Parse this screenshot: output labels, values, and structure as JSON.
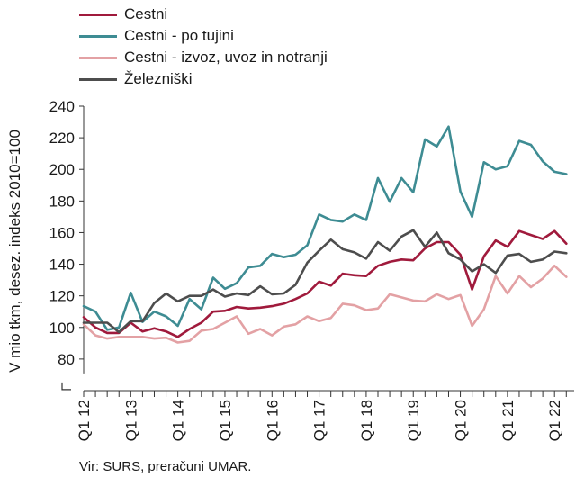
{
  "chart_data": {
    "type": "line",
    "ylabel": "V mio tkm, desez. indeks 2010=100",
    "ylim": [
      60,
      240
    ],
    "yticks": [
      80,
      100,
      120,
      140,
      160,
      180,
      200,
      220,
      240
    ],
    "x_period_labels": [
      "Q1 12",
      "Q1 13",
      "Q1 14",
      "Q1 15",
      "Q1 16",
      "Q1 17",
      "Q1 18",
      "Q1 19",
      "Q1 20",
      "Q1 21",
      "Q1 22"
    ],
    "x_months": [
      "2012-01",
      "2012-02",
      "2012-03",
      "2012-04",
      "2012-05",
      "2012-06",
      "2012-07",
      "2012-08",
      "2012-09",
      "2012-10",
      "2012-11",
      "2012-12",
      "2013-01",
      "2013-02",
      "2013-03",
      "2013-04",
      "2013-05",
      "2013-06",
      "2013-07",
      "2013-08",
      "2013-09",
      "2013-10",
      "2013-11",
      "2013-12",
      "2014-01",
      "2014-02",
      "2014-03",
      "2014-04",
      "2014-05",
      "2014-06",
      "2014-07",
      "2014-08",
      "2014-09",
      "2014-10",
      "2014-11",
      "2014-12",
      "2015-01",
      "2015-02",
      "2015-03",
      "2015-04",
      "2015-05",
      "2015-06",
      "2015-07",
      "2015-08",
      "2015-09",
      "2015-10",
      "2015-11",
      "2015-12",
      "2016-01",
      "2016-02",
      "2016-03",
      "2016-04",
      "2016-05",
      "2016-06",
      "2016-07",
      "2016-08",
      "2016-09",
      "2016-10",
      "2016-11",
      "2016-12",
      "2017-01",
      "2017-02",
      "2017-03",
      "2017-04",
      "2017-05",
      "2017-06",
      "2017-07",
      "2017-08",
      "2017-09",
      "2017-10",
      "2017-11",
      "2017-12",
      "2018-01",
      "2018-02",
      "2018-03",
      "2018-04",
      "2018-05",
      "2018-06",
      "2018-07",
      "2018-08",
      "2018-09",
      "2018-10",
      "2018-11",
      "2018-12",
      "2019-01",
      "2019-02",
      "2019-03",
      "2019-04",
      "2019-05",
      "2019-06",
      "2019-07",
      "2019-08",
      "2019-09",
      "2019-10",
      "2019-11",
      "2019-12",
      "2020-01",
      "2020-02",
      "2020-03",
      "2020-04",
      "2020-05",
      "2020-06",
      "2020-07",
      "2020-08",
      "2020-09",
      "2020-10",
      "2020-11",
      "2020-12",
      "2021-01",
      "2021-02",
      "2021-03",
      "2021-04",
      "2021-05",
      "2021-06",
      "2021-07",
      "2021-08",
      "2021-09",
      "2021-10",
      "2021-11",
      "2021-12",
      "2022-01",
      "2022-02",
      "2022-03",
      "2022-04",
      "2022-05",
      "2022-06"
    ],
    "series": [
      {
        "name": "Cestni",
        "color": "#A01A3C",
        "points": [
          [
            "2012-01",
            106.5
          ],
          [
            "2012-04",
            100
          ],
          [
            "2012-07",
            96.5
          ],
          [
            "2012-10",
            96.5
          ],
          [
            "2013-01",
            103
          ],
          [
            "2013-04",
            97.5
          ],
          [
            "2013-07",
            99.5
          ],
          [
            "2013-10",
            97.5
          ],
          [
            "2014-01",
            94
          ],
          [
            "2014-04",
            99
          ],
          [
            "2014-07",
            103
          ],
          [
            "2014-10",
            110
          ],
          [
            "2015-01",
            110.5
          ],
          [
            "2015-04",
            113
          ],
          [
            "2015-07",
            112
          ],
          [
            "2015-10",
            112.5
          ],
          [
            "2016-01",
            113.5
          ],
          [
            "2016-04",
            115
          ],
          [
            "2016-07",
            118
          ],
          [
            "2016-10",
            121.5
          ],
          [
            "2017-01",
            129
          ],
          [
            "2017-04",
            126.5
          ],
          [
            "2017-07",
            134
          ],
          [
            "2017-10",
            133
          ],
          [
            "2018-01",
            132.5
          ],
          [
            "2018-04",
            139
          ],
          [
            "2018-07",
            141.5
          ],
          [
            "2018-10",
            143
          ],
          [
            "2019-01",
            142.5
          ],
          [
            "2019-04",
            150
          ],
          [
            "2019-07",
            154
          ],
          [
            "2019-10",
            154
          ],
          [
            "2020-01",
            146
          ],
          [
            "2020-04",
            124
          ],
          [
            "2020-07",
            145
          ],
          [
            "2020-10",
            155
          ],
          [
            "2021-01",
            151
          ],
          [
            "2021-04",
            161
          ],
          [
            "2021-07",
            158.5
          ],
          [
            "2021-10",
            156
          ],
          [
            "2022-01",
            161
          ],
          [
            "2022-04",
            153
          ]
        ]
      },
      {
        "name": "Cestni - po tujini",
        "color": "#3E8C93",
        "points": [
          [
            "2012-01",
            113.5
          ],
          [
            "2012-04",
            110
          ],
          [
            "2012-07",
            98.5
          ],
          [
            "2012-10",
            100
          ],
          [
            "2013-01",
            122
          ],
          [
            "2013-04",
            103.5
          ],
          [
            "2013-07",
            110
          ],
          [
            "2013-10",
            107
          ],
          [
            "2014-01",
            101
          ],
          [
            "2014-04",
            118
          ],
          [
            "2014-07",
            111.5
          ],
          [
            "2014-10",
            131.5
          ],
          [
            "2015-01",
            124.5
          ],
          [
            "2015-04",
            128
          ],
          [
            "2015-07",
            138
          ],
          [
            "2015-10",
            139
          ],
          [
            "2016-01",
            146.5
          ],
          [
            "2016-04",
            144.5
          ],
          [
            "2016-07",
            146
          ],
          [
            "2016-10",
            152
          ],
          [
            "2017-01",
            171.5
          ],
          [
            "2017-04",
            168
          ],
          [
            "2017-07",
            167
          ],
          [
            "2017-10",
            171.5
          ],
          [
            "2018-01",
            168
          ],
          [
            "2018-04",
            194.5
          ],
          [
            "2018-07",
            179.5
          ],
          [
            "2018-10",
            194.5
          ],
          [
            "2019-01",
            185.5
          ],
          [
            "2019-04",
            219
          ],
          [
            "2019-07",
            214.5
          ],
          [
            "2019-10",
            227
          ],
          [
            "2020-01",
            186
          ],
          [
            "2020-04",
            170
          ],
          [
            "2020-07",
            204.5
          ],
          [
            "2020-10",
            200
          ],
          [
            "2021-01",
            202
          ],
          [
            "2021-04",
            218
          ],
          [
            "2021-07",
            215.5
          ],
          [
            "2021-10",
            205
          ],
          [
            "2022-01",
            198.5
          ],
          [
            "2022-04",
            197
          ]
        ]
      },
      {
        "name": "Cestni - izvoz, uvoz in notranji",
        "color": "#E3A1A4",
        "points": [
          [
            "2012-01",
            102
          ],
          [
            "2012-04",
            95
          ],
          [
            "2012-07",
            93
          ],
          [
            "2012-10",
            94
          ],
          [
            "2013-01",
            94
          ],
          [
            "2013-04",
            94
          ],
          [
            "2013-07",
            93
          ],
          [
            "2013-10",
            93.5
          ],
          [
            "2014-01",
            90.5
          ],
          [
            "2014-04",
            91.5
          ],
          [
            "2014-07",
            98
          ],
          [
            "2014-10",
            99
          ],
          [
            "2015-01",
            103
          ],
          [
            "2015-04",
            107
          ],
          [
            "2015-07",
            96
          ],
          [
            "2015-10",
            99
          ],
          [
            "2016-01",
            95
          ],
          [
            "2016-04",
            100.5
          ],
          [
            "2016-07",
            102
          ],
          [
            "2016-10",
            107
          ],
          [
            "2017-01",
            104
          ],
          [
            "2017-04",
            106
          ],
          [
            "2017-07",
            115
          ],
          [
            "2017-10",
            114
          ],
          [
            "2018-01",
            111
          ],
          [
            "2018-04",
            112
          ],
          [
            "2018-07",
            121
          ],
          [
            "2018-10",
            119
          ],
          [
            "2019-01",
            117
          ],
          [
            "2019-04",
            116.5
          ],
          [
            "2019-07",
            121
          ],
          [
            "2019-10",
            118
          ],
          [
            "2020-01",
            120.5
          ],
          [
            "2020-04",
            101
          ],
          [
            "2020-07",
            111.5
          ],
          [
            "2020-10",
            132.5
          ],
          [
            "2021-01",
            121.5
          ],
          [
            "2021-04",
            132.5
          ],
          [
            "2021-07",
            125.5
          ],
          [
            "2021-10",
            131
          ],
          [
            "2022-01",
            139
          ],
          [
            "2022-04",
            132
          ]
        ]
      },
      {
        "name": "Železniški",
        "color": "#4D4D4D",
        "points": [
          [
            "2012-01",
            103
          ],
          [
            "2012-04",
            103
          ],
          [
            "2012-07",
            103
          ],
          [
            "2012-10",
            97
          ],
          [
            "2013-01",
            104
          ],
          [
            "2013-04",
            104
          ],
          [
            "2013-07",
            115.5
          ],
          [
            "2013-10",
            121.5
          ],
          [
            "2014-01",
            116.5
          ],
          [
            "2014-04",
            120
          ],
          [
            "2014-07",
            120
          ],
          [
            "2014-10",
            124
          ],
          [
            "2015-01",
            119.5
          ],
          [
            "2015-04",
            121.5
          ],
          [
            "2015-07",
            120.5
          ],
          [
            "2015-10",
            126
          ],
          [
            "2016-01",
            121
          ],
          [
            "2016-04",
            121.5
          ],
          [
            "2016-07",
            127
          ],
          [
            "2016-10",
            141
          ],
          [
            "2017-01",
            148.5
          ],
          [
            "2017-04",
            155.5
          ],
          [
            "2017-07",
            149.5
          ],
          [
            "2017-10",
            147.5
          ],
          [
            "2018-01",
            143.5
          ],
          [
            "2018-04",
            154
          ],
          [
            "2018-07",
            148.5
          ],
          [
            "2018-10",
            157.5
          ],
          [
            "2019-01",
            161.5
          ],
          [
            "2019-04",
            151
          ],
          [
            "2019-07",
            160
          ],
          [
            "2019-10",
            147
          ],
          [
            "2020-01",
            143
          ],
          [
            "2020-04",
            135.5
          ],
          [
            "2020-07",
            140
          ],
          [
            "2020-10",
            134.5
          ],
          [
            "2021-01",
            145.5
          ],
          [
            "2021-04",
            146.5
          ],
          [
            "2021-07",
            141.5
          ],
          [
            "2021-10",
            143
          ],
          [
            "2022-01",
            148
          ],
          [
            "2022-04",
            147
          ]
        ]
      }
    ]
  },
  "source_note": "Vir: SURS, preračuni UMAR."
}
